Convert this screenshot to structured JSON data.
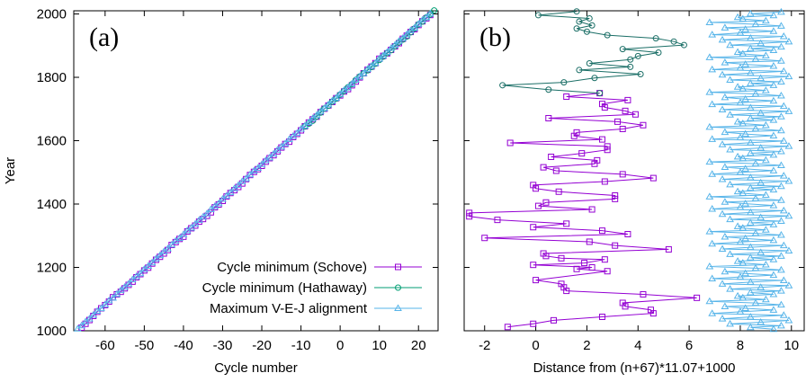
{
  "chart_data": [
    {
      "type": "line",
      "panel_label": "(a)",
      "xlabel": "Cycle number",
      "ylabel": "Year",
      "xlim": [
        -68,
        25
      ],
      "ylim": [
        1000,
        2010
      ],
      "xticks": [
        -60,
        -50,
        -40,
        -30,
        -20,
        -10,
        0,
        10,
        20
      ],
      "xtick_labels": [
        "-60",
        "-50",
        "-40",
        "-30",
        "-20",
        "-10",
        "0",
        "10",
        "20"
      ],
      "yticks": [
        1000,
        1200,
        1400,
        1600,
        1800,
        2000
      ],
      "ytick_labels": [
        "1000",
        "1200",
        "1400",
        "1600",
        "1800",
        "2000"
      ],
      "legend_position": "bottom-right",
      "series": [
        {
          "name": "Cycle minimum (Schove)",
          "color": "#9400d3",
          "marker": "square",
          "x_range": [
            -66,
            23
          ],
          "relation": "year ≈ (n+67)*11.07+1000 + offset"
        },
        {
          "name": "Cycle minimum (Hathaway)",
          "color": "#009e73",
          "marker": "circle",
          "x_range": [
            -9,
            24
          ],
          "relation": "year ≈ (n+67)*11.07+1000 + offset"
        },
        {
          "name": "Maximum V-E-J alignment",
          "color": "#56b4e9",
          "marker": "triangle",
          "x_range": [
            -67,
            24
          ],
          "relation": "year ≈ (n+67)*11.07+1000 + offset"
        }
      ]
    },
    {
      "type": "line",
      "panel_label": "(b)",
      "xlabel": "Distance from (n+67)*11.07+1000",
      "ylabel": "",
      "xlim": [
        -2.8,
        10.5
      ],
      "ylim": [
        1000,
        2010
      ],
      "xticks": [
        -2,
        0,
        2,
        4,
        6,
        8,
        10
      ],
      "xtick_labels": [
        "-2",
        "0",
        "2",
        "4",
        "6",
        "8",
        "10"
      ],
      "yticks": [
        1000,
        1200,
        1400,
        1600,
        1800,
        2000
      ],
      "series": [
        {
          "name": "Cycle minimum (Schove)",
          "color": "#9400d3",
          "marker": "square",
          "points": [
            [
              -1.1,
              1012
            ],
            [
              -0.1,
              1022
            ],
            [
              0.7,
              1033
            ],
            [
              2.6,
              1044
            ],
            [
              4.6,
              1055
            ],
            [
              4.5,
              1066
            ],
            [
              3.5,
              1077
            ],
            [
              3.4,
              1088
            ],
            [
              6.3,
              1104
            ],
            [
              4.2,
              1115
            ],
            [
              1.2,
              1126
            ],
            [
              1.1,
              1137
            ],
            [
              1.0,
              1148
            ],
            [
              0.0,
              1160
            ],
            [
              2.8,
              1188
            ],
            [
              1.6,
              1195
            ],
            [
              2.2,
              1200
            ],
            [
              -0.1,
              1208
            ],
            [
              1.9,
              1214
            ],
            [
              2.7,
              1225
            ],
            [
              1.0,
              1229
            ],
            [
              0.4,
              1236
            ],
            [
              0.3,
              1244
            ],
            [
              5.2,
              1257
            ],
            [
              3.1,
              1269
            ],
            [
              2.1,
              1281
            ],
            [
              -2.0,
              1293
            ],
            [
              3.6,
              1305
            ],
            [
              2.6,
              1316
            ],
            [
              -0.1,
              1327
            ],
            [
              1.2,
              1338
            ],
            [
              -1.5,
              1350
            ],
            [
              -2.6,
              1361
            ],
            [
              -2.6,
              1372
            ],
            [
              2.2,
              1383
            ],
            [
              0.1,
              1394
            ],
            [
              0.4,
              1405
            ],
            [
              3.1,
              1416
            ],
            [
              3.1,
              1427
            ],
            [
              0.9,
              1439
            ],
            [
              0.0,
              1449
            ],
            [
              -0.1,
              1460
            ],
            [
              2.7,
              1471
            ],
            [
              4.6,
              1482
            ],
            [
              3.4,
              1494
            ],
            [
              0.8,
              1505
            ],
            [
              0.3,
              1516
            ],
            [
              2.3,
              1527
            ],
            [
              2.4,
              1538
            ],
            [
              0.6,
              1549
            ],
            [
              1.8,
              1560
            ],
            [
              2.8,
              1571
            ],
            [
              2.8,
              1582
            ],
            [
              -1.0,
              1593
            ],
            [
              2.6,
              1604
            ],
            [
              1.5,
              1615
            ],
            [
              1.6,
              1626
            ],
            [
              3.4,
              1637
            ],
            [
              4.2,
              1649
            ],
            [
              3.2,
              1660
            ],
            [
              0.5,
              1671
            ],
            [
              3.9,
              1683
            ],
            [
              3.5,
              1694
            ],
            [
              2.7,
              1705
            ],
            [
              2.6,
              1716
            ],
            [
              3.6,
              1728
            ],
            [
              1.2,
              1739
            ],
            [
              2.5,
              1750
            ]
          ]
        },
        {
          "name": "Cycle minimum (Hathaway)",
          "color": "#1a6e66",
          "marker": "circle",
          "points": [
            [
              2.5,
              1750
            ],
            [
              0.5,
              1761
            ],
            [
              -1.3,
              1775
            ],
            [
              1.1,
              1784
            ],
            [
              2.3,
              1798
            ],
            [
              4.1,
              1810
            ],
            [
              1.7,
              1823
            ],
            [
              3.7,
              1833
            ],
            [
              2.1,
              1844
            ],
            [
              3.7,
              1856
            ],
            [
              4.0,
              1867
            ],
            [
              4.8,
              1878
            ],
            [
              3.4,
              1889
            ],
            [
              5.8,
              1902
            ],
            [
              5.4,
              1913
            ],
            [
              4.7,
              1923
            ],
            [
              2.8,
              1933
            ],
            [
              2.0,
              1944
            ],
            [
              1.6,
              1954
            ],
            [
              2.2,
              1964
            ],
            [
              1.7,
              1976
            ],
            [
              2.1,
              1986
            ],
            [
              0.1,
              1996
            ],
            [
              1.6,
              2008
            ]
          ]
        },
        {
          "name": "Maximum V-E-J alignment",
          "color": "#56b4e9",
          "marker": "triangle",
          "pattern_x": [
            9.3,
            8.4,
            9.6,
            7.6,
            8.8,
            9.9,
            7.3,
            8.4,
            9.7,
            6.9,
            8.0,
            9.3,
            8.2,
            7.4,
            9.6,
            8.6,
            6.8,
            9.0,
            8.1,
            7.9
          ],
          "y_start": 1005,
          "y_step": 5.5,
          "y_end": 2010
        }
      ]
    }
  ]
}
